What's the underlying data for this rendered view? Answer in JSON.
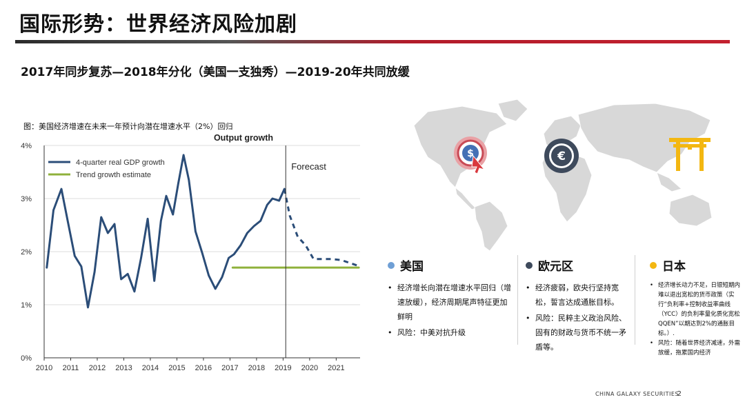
{
  "page": {
    "title": "国际形势：世界经济风险加剧",
    "subtitle": "2017年同步复苏—2018年分化（美国一支独秀）—2019-20年共同放缓",
    "footer_brand": "CHINA GALAXY SECURITIES",
    "page_number": "2"
  },
  "chart_caption": "图：美国经济增速在未来一年预计向潜在增速水平（2%）回归",
  "chart_data": {
    "type": "line",
    "title": "Output growth",
    "xlabel": "",
    "ylabel": "",
    "ylim": [
      0,
      4
    ],
    "xlim": [
      2010,
      2021.9
    ],
    "y_ticks": [
      "0%",
      "1%",
      "2%",
      "3%",
      "4%"
    ],
    "x_ticks": [
      "2010",
      "2011",
      "2012",
      "2013",
      "2014",
      "2015",
      "2016",
      "2017",
      "2018",
      "2019",
      "2020",
      "2021"
    ],
    "grid": true,
    "legend_position": "top-left",
    "annotation": "Forecast",
    "forecast_start": 2019.1,
    "series": [
      {
        "name": "4-quarter real GDP growth",
        "color": "#2b4d78",
        "x": [
          2010.1,
          2010.35,
          2010.65,
          2010.9,
          2011.15,
          2011.4,
          2011.65,
          2011.9,
          2012.15,
          2012.4,
          2012.65,
          2012.9,
          2013.15,
          2013.4,
          2013.65,
          2013.9,
          2014.15,
          2014.4,
          2014.6,
          2014.85,
          2015.05,
          2015.25,
          2015.45,
          2015.7,
          2015.95,
          2016.2,
          2016.45,
          2016.7,
          2016.95,
          2017.15,
          2017.4,
          2017.65,
          2017.9,
          2018.15,
          2018.4,
          2018.6,
          2018.85,
          2019.05
        ],
        "values": [
          1.7,
          2.78,
          3.18,
          2.55,
          1.92,
          1.72,
          0.95,
          1.62,
          2.65,
          2.35,
          2.52,
          1.48,
          1.58,
          1.25,
          1.88,
          2.62,
          1.45,
          2.58,
          3.05,
          2.7,
          3.28,
          3.82,
          3.35,
          2.38,
          1.98,
          1.55,
          1.3,
          1.52,
          1.88,
          1.95,
          2.12,
          2.35,
          2.48,
          2.58,
          2.88,
          3.0,
          2.96,
          3.18
        ]
      },
      {
        "name": "Forecast",
        "color": "#2b4d78",
        "dashed": true,
        "x": [
          2019.05,
          2019.25,
          2019.55,
          2019.85,
          2020.15,
          2020.5,
          2020.85,
          2021.2,
          2021.55,
          2021.85
        ],
        "values": [
          3.18,
          2.68,
          2.28,
          2.12,
          1.86,
          1.86,
          1.86,
          1.84,
          1.78,
          1.73
        ]
      },
      {
        "name": "Trend growth estimate",
        "color": "#8fb13b",
        "x": [
          2017.1,
          2021.85
        ],
        "values": [
          1.7,
          1.7
        ]
      }
    ]
  },
  "map": {
    "us_icon": "dollar-cursor-icon",
    "eu_icon": "euro-coin-icon",
    "jp_icon": "torii-gate-icon"
  },
  "regions": [
    {
      "name": "美国",
      "color": "#6f9fd5",
      "bullets": [
        "经济增长向潜在增速水平回归（增速放缓），经济周期尾声特征更加鲜明",
        "风险：中美对抗升级"
      ]
    },
    {
      "name": "欧元区",
      "color": "#3e4a5c",
      "bullets": [
        "经济疲弱，欧央行坚持宽松，誓言达成通胀目标。",
        "风险：民粹主义政治风险、固有的财政与货币不统一矛盾等。"
      ]
    },
    {
      "name": "日本",
      "color": "#f3b711",
      "bullets": [
        "经济增长动力不足，日银短期内难以退出宽松的货币政策（实行“负利率+控制收益率曲线（YCC）的负利率量化质化宽松QQEN”以期达到2%的通胀目标。）.",
        "风险：随着世界经济减速，外需放缓，拖累国内经济"
      ]
    }
  ]
}
